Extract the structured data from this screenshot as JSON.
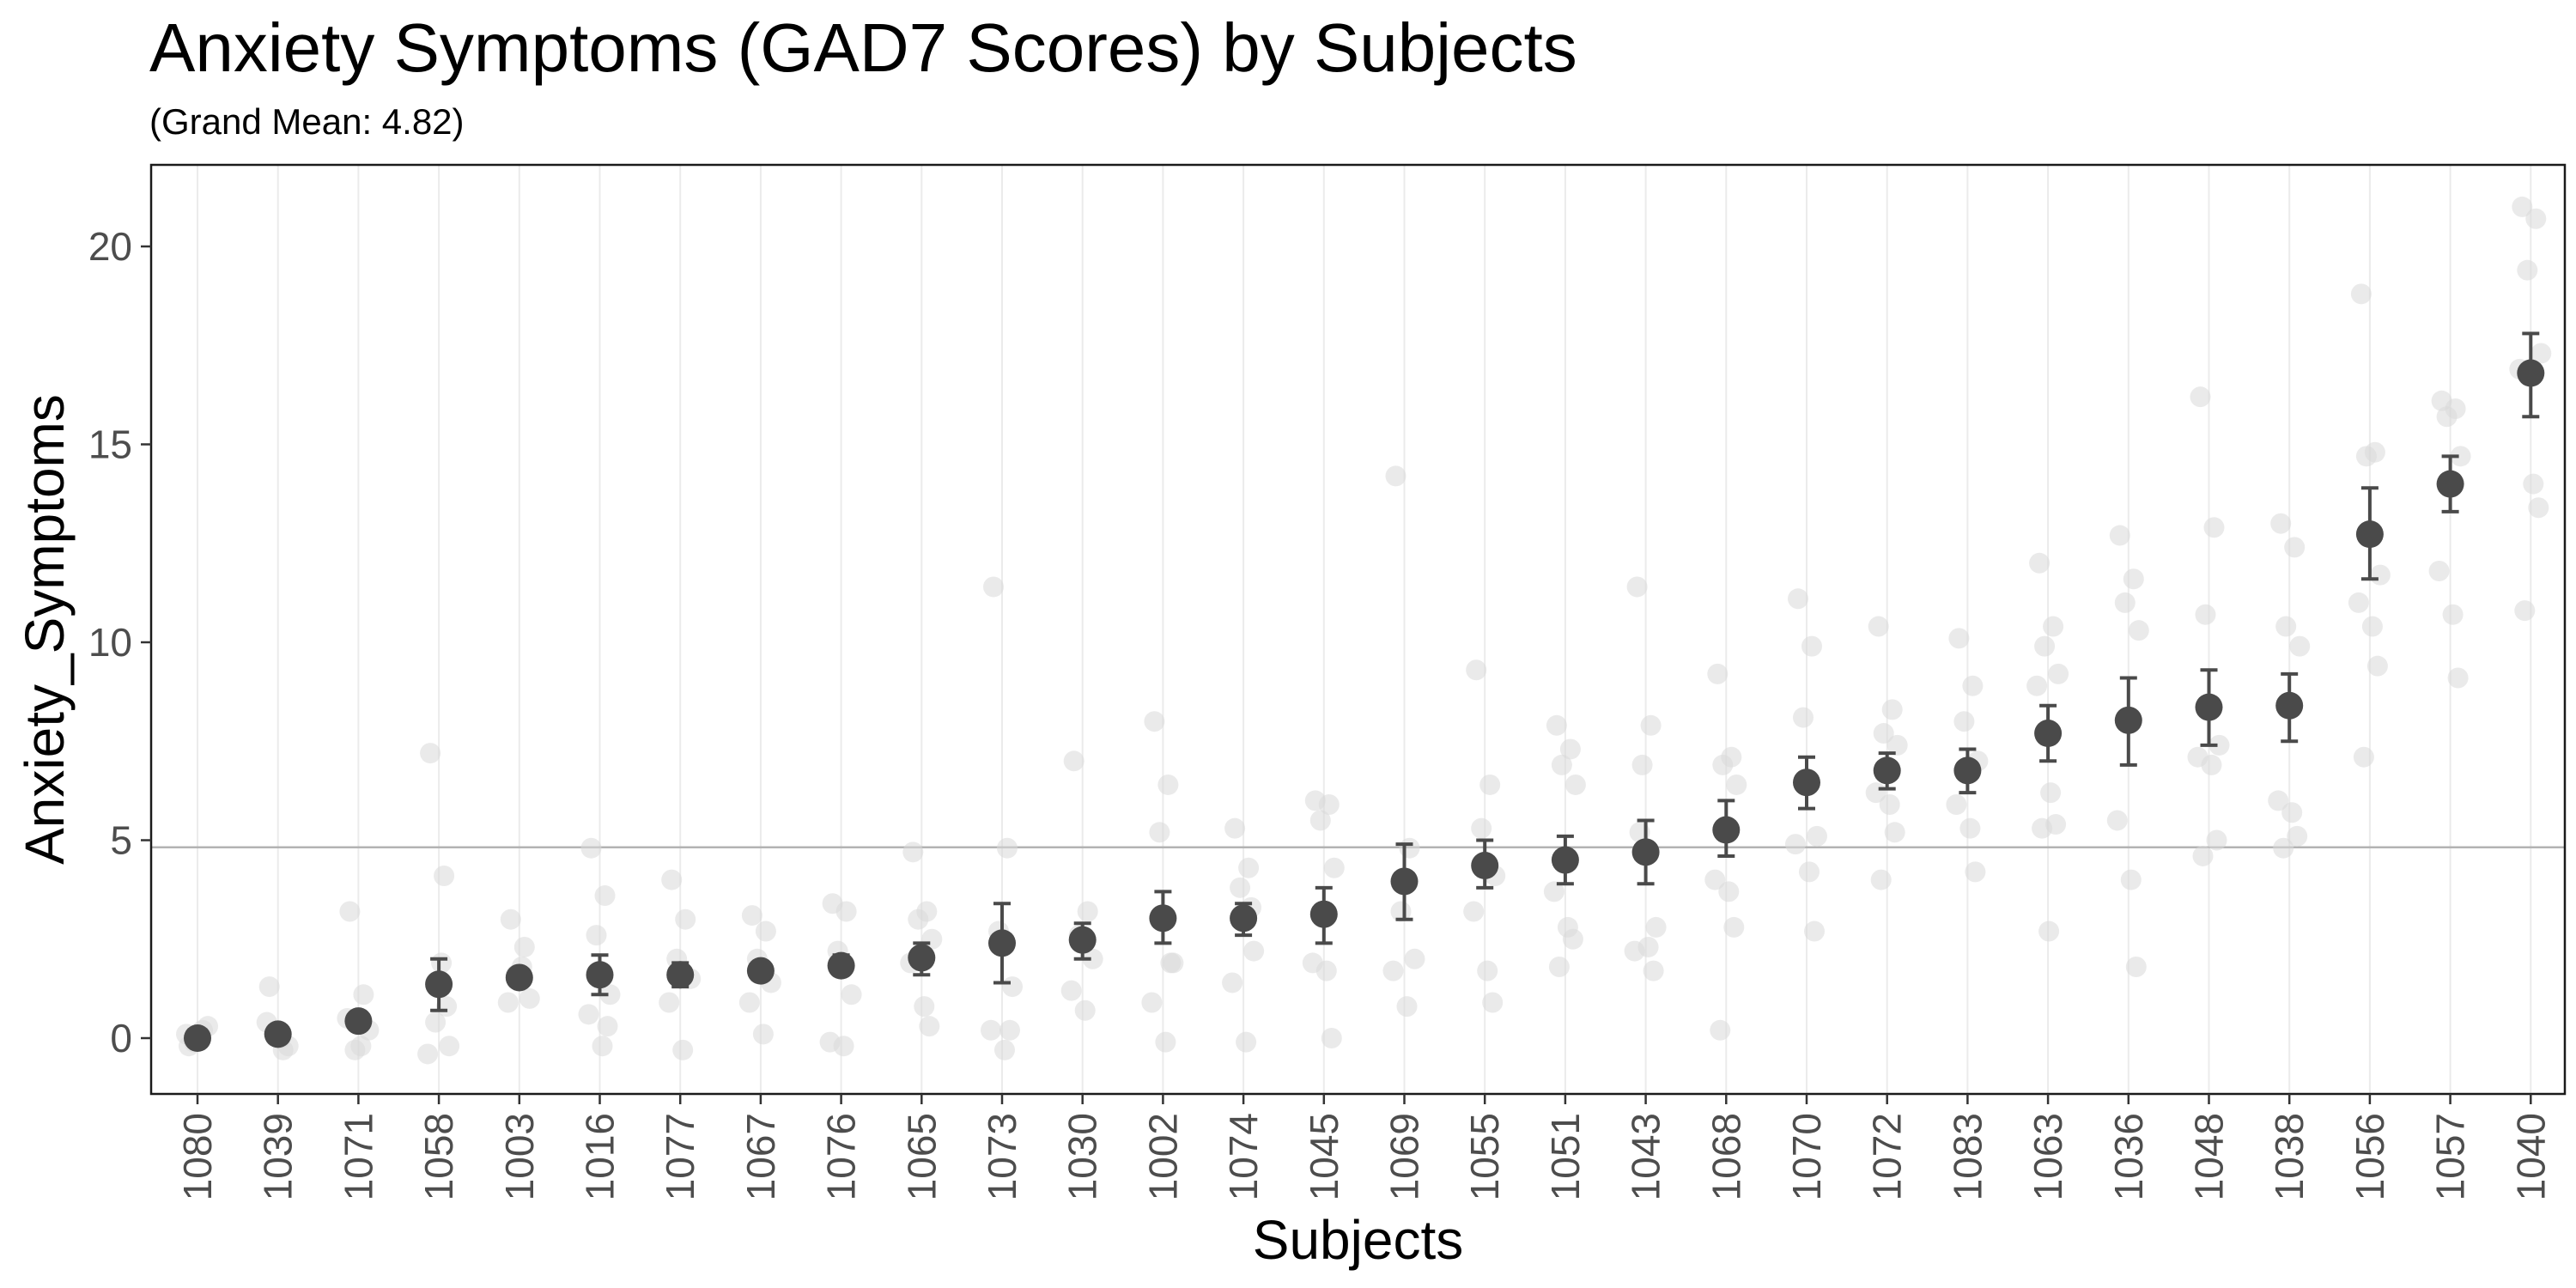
{
  "chart_data": {
    "type": "scatter",
    "title": "Anxiety Symptoms (GAD7 Scores) by Subjects",
    "subtitle": "(Grand Mean: 4.82)",
    "xlabel": "Subjects",
    "ylabel": "Anxiety_Symptoms",
    "ylim": [
      -1.4,
      22
    ],
    "yticks": [
      0,
      5,
      10,
      15,
      20
    ],
    "grand_mean": 4.82,
    "grid": "vertical-only",
    "categories": [
      "1080",
      "1039",
      "1071",
      "1058",
      "1003",
      "1016",
      "1077",
      "1067",
      "1076",
      "1065",
      "1073",
      "1030",
      "1002",
      "1074",
      "1045",
      "1069",
      "1055",
      "1051",
      "1043",
      "1068",
      "1070",
      "1072",
      "1083",
      "1063",
      "1036",
      "1048",
      "1038",
      "1056",
      "1057",
      "1040"
    ],
    "series": [
      {
        "name": "mean",
        "values": [
          0.0,
          0.1,
          0.43,
          1.36,
          1.53,
          1.6,
          1.6,
          1.7,
          1.83,
          2.03,
          2.4,
          2.48,
          3.03,
          3.03,
          3.13,
          3.96,
          4.36,
          4.5,
          4.7,
          5.26,
          6.46,
          6.76,
          6.76,
          7.7,
          8.03,
          8.36,
          8.4,
          12.73,
          14.0,
          16.8
        ],
        "lower": [
          0.0,
          0.0,
          0.3,
          0.7,
          1.4,
          1.1,
          1.3,
          1.6,
          1.6,
          1.6,
          1.4,
          2.0,
          2.4,
          2.6,
          2.4,
          3.0,
          3.8,
          3.9,
          3.9,
          4.6,
          5.8,
          6.3,
          6.2,
          7.0,
          6.9,
          7.4,
          7.5,
          11.6,
          13.3,
          15.7
        ],
        "upper": [
          0.0,
          0.2,
          0.6,
          2.0,
          1.7,
          2.1,
          1.9,
          1.8,
          2.1,
          2.4,
          3.4,
          2.9,
          3.7,
          3.4,
          3.8,
          4.9,
          5.0,
          5.1,
          5.5,
          6.0,
          7.1,
          7.2,
          7.3,
          8.4,
          9.1,
          9.3,
          9.2,
          13.9,
          14.7,
          17.8
        ]
      },
      {
        "name": "observations",
        "points": [
          [
            [
              0,
              -0.2
            ],
            [
              0,
              0.2
            ],
            [
              0,
              -0.1
            ],
            [
              0,
              0.3
            ],
            [
              0,
              0.1
            ],
            [
              0,
              0
            ]
          ],
          [
            [
              1,
              1.3
            ],
            [
              1,
              -0.3
            ],
            [
              1,
              0.1
            ],
            [
              1,
              -0.2
            ],
            [
              1,
              0.4
            ],
            [
              1,
              0
            ]
          ],
          [
            [
              2,
              3.2
            ],
            [
              2,
              1.1
            ],
            [
              2,
              -0.3
            ],
            [
              2,
              0.2
            ],
            [
              2,
              0.5
            ],
            [
              2,
              -0.2
            ]
          ],
          [
            [
              3,
              7.2
            ],
            [
              3,
              4.1
            ],
            [
              3,
              0.4
            ],
            [
              3,
              -0.2
            ],
            [
              3,
              -0.4
            ],
            [
              3,
              1.9
            ],
            [
              3,
              0.8
            ]
          ],
          [
            [
              4,
              3.0
            ],
            [
              4,
              2.3
            ],
            [
              4,
              1.6
            ],
            [
              4,
              1.0
            ],
            [
              4,
              0.9
            ],
            [
              4,
              1.8
            ]
          ],
          [
            [
              5,
              4.8
            ],
            [
              5,
              3.6
            ],
            [
              5,
              2.6
            ],
            [
              5,
              1.1
            ],
            [
              5,
              0.6
            ],
            [
              5,
              -0.2
            ],
            [
              5,
              0.3
            ]
          ],
          [
            [
              6,
              4.0
            ],
            [
              6,
              3.0
            ],
            [
              6,
              2.0
            ],
            [
              6,
              1.5
            ],
            [
              6,
              0.9
            ],
            [
              6,
              -0.3
            ]
          ],
          [
            [
              7,
              3.1
            ],
            [
              7,
              2.7
            ],
            [
              7,
              2.0
            ],
            [
              7,
              1.4
            ],
            [
              7,
              0.9
            ],
            [
              7,
              0.1
            ]
          ],
          [
            [
              8,
              3.4
            ],
            [
              8,
              3.2
            ],
            [
              8,
              2.2
            ],
            [
              8,
              1.1
            ],
            [
              8,
              -0.1
            ],
            [
              8,
              -0.2
            ]
          ],
          [
            [
              9,
              4.7
            ],
            [
              9,
              3.2
            ],
            [
              9,
              3.0
            ],
            [
              9,
              2.5
            ],
            [
              9,
              1.9
            ],
            [
              9,
              0.8
            ],
            [
              9,
              0.3
            ]
          ],
          [
            [
              10,
              11.4
            ],
            [
              10,
              4.8
            ],
            [
              10,
              2.7
            ],
            [
              10,
              1.3
            ],
            [
              10,
              0.2
            ],
            [
              10,
              -0.3
            ],
            [
              10,
              0.2
            ]
          ],
          [
            [
              11,
              7.0
            ],
            [
              11,
              3.2
            ],
            [
              11,
              2.6
            ],
            [
              11,
              2.0
            ],
            [
              11,
              1.2
            ],
            [
              11,
              0.7
            ]
          ],
          [
            [
              12,
              8.0
            ],
            [
              12,
              6.4
            ],
            [
              12,
              5.2
            ],
            [
              12,
              1.9
            ],
            [
              12,
              0.9
            ],
            [
              12,
              -0.1
            ],
            [
              12,
              1.9
            ]
          ],
          [
            [
              13,
              5.3
            ],
            [
              13,
              4.3
            ],
            [
              13,
              3.8
            ],
            [
              13,
              2.2
            ],
            [
              13,
              1.4
            ],
            [
              13,
              -0.1
            ],
            [
              13,
              3.3
            ]
          ],
          [
            [
              14,
              6.0
            ],
            [
              14,
              5.9
            ],
            [
              14,
              5.5
            ],
            [
              14,
              4.3
            ],
            [
              14,
              1.9
            ],
            [
              14,
              1.7
            ],
            [
              14,
              0.0
            ]
          ],
          [
            [
              15,
              14.2
            ],
            [
              15,
              4.8
            ],
            [
              15,
              3.2
            ],
            [
              15,
              2.0
            ],
            [
              15,
              1.7
            ],
            [
              15,
              0.8
            ]
          ],
          [
            [
              16,
              9.3
            ],
            [
              16,
              6.4
            ],
            [
              16,
              5.3
            ],
            [
              16,
              4.1
            ],
            [
              16,
              3.2
            ],
            [
              16,
              1.7
            ],
            [
              16,
              0.9
            ]
          ],
          [
            [
              17,
              7.9
            ],
            [
              17,
              7.3
            ],
            [
              17,
              6.9
            ],
            [
              17,
              6.4
            ],
            [
              17,
              3.7
            ],
            [
              17,
              2.8
            ],
            [
              17,
              2.5
            ],
            [
              17,
              1.8
            ]
          ],
          [
            [
              18,
              11.4
            ],
            [
              18,
              7.9
            ],
            [
              18,
              6.9
            ],
            [
              18,
              2.8
            ],
            [
              18,
              2.2
            ],
            [
              18,
              2.3
            ],
            [
              18,
              1.7
            ],
            [
              18,
              5.2
            ]
          ],
          [
            [
              19,
              9.2
            ],
            [
              19,
              7.1
            ],
            [
              19,
              6.9
            ],
            [
              19,
              6.4
            ],
            [
              19,
              4.0
            ],
            [
              19,
              3.7
            ],
            [
              19,
              2.8
            ],
            [
              19,
              0.2
            ]
          ],
          [
            [
              20,
              11.1
            ],
            [
              20,
              9.9
            ],
            [
              20,
              8.1
            ],
            [
              20,
              5.1
            ],
            [
              20,
              4.9
            ],
            [
              20,
              4.2
            ],
            [
              20,
              2.7
            ]
          ],
          [
            [
              21,
              10.4
            ],
            [
              21,
              8.3
            ],
            [
              21,
              7.7
            ],
            [
              21,
              7.4
            ],
            [
              21,
              6.2
            ],
            [
              21,
              5.9
            ],
            [
              21,
              5.2
            ],
            [
              21,
              4.0
            ]
          ],
          [
            [
              22,
              10.1
            ],
            [
              22,
              8.9
            ],
            [
              22,
              8.0
            ],
            [
              22,
              7.0
            ],
            [
              22,
              5.9
            ],
            [
              22,
              5.3
            ],
            [
              22,
              4.2
            ]
          ],
          [
            [
              23,
              12.0
            ],
            [
              23,
              10.4
            ],
            [
              23,
              9.9
            ],
            [
              23,
              9.2
            ],
            [
              23,
              8.9
            ],
            [
              23,
              6.2
            ],
            [
              23,
              5.4
            ],
            [
              23,
              5.3
            ],
            [
              23,
              2.7
            ]
          ],
          [
            [
              24,
              12.7
            ],
            [
              24,
              11.6
            ],
            [
              24,
              11.0
            ],
            [
              24,
              10.3
            ],
            [
              24,
              5.5
            ],
            [
              24,
              4.0
            ],
            [
              24,
              1.8
            ]
          ],
          [
            [
              25,
              16.2
            ],
            [
              25,
              12.9
            ],
            [
              25,
              10.7
            ],
            [
              25,
              7.4
            ],
            [
              25,
              7.1
            ],
            [
              25,
              6.9
            ],
            [
              25,
              5.0
            ],
            [
              25,
              4.6
            ]
          ],
          [
            [
              26,
              13.0
            ],
            [
              26,
              12.4
            ],
            [
              26,
              10.4
            ],
            [
              26,
              9.9
            ],
            [
              26,
              6.0
            ],
            [
              26,
              5.7
            ],
            [
              26,
              5.1
            ],
            [
              26,
              4.8
            ]
          ],
          [
            [
              27,
              18.8
            ],
            [
              27,
              14.8
            ],
            [
              27,
              14.7
            ],
            [
              27,
              11.7
            ],
            [
              27,
              11.0
            ],
            [
              27,
              10.4
            ],
            [
              27,
              9.4
            ],
            [
              27,
              7.1
            ]
          ],
          [
            [
              28,
              16.1
            ],
            [
              28,
              15.9
            ],
            [
              28,
              15.7
            ],
            [
              28,
              14.7
            ],
            [
              28,
              11.8
            ],
            [
              28,
              10.7
            ],
            [
              28,
              9.1
            ]
          ],
          [
            [
              29,
              21.0
            ],
            [
              29,
              20.7
            ],
            [
              29,
              19.4
            ],
            [
              29,
              17.3
            ],
            [
              29,
              16.9
            ],
            [
              29,
              14.0
            ],
            [
              29,
              13.4
            ],
            [
              29,
              10.8
            ]
          ]
        ]
      }
    ]
  },
  "colors": {
    "mean_point": "#4a4a4a",
    "observation_point": "#d9d9d9",
    "grid": "#ebebeb",
    "mean_line": "#b3b3b3",
    "axis_text": "#4d4d4d"
  }
}
